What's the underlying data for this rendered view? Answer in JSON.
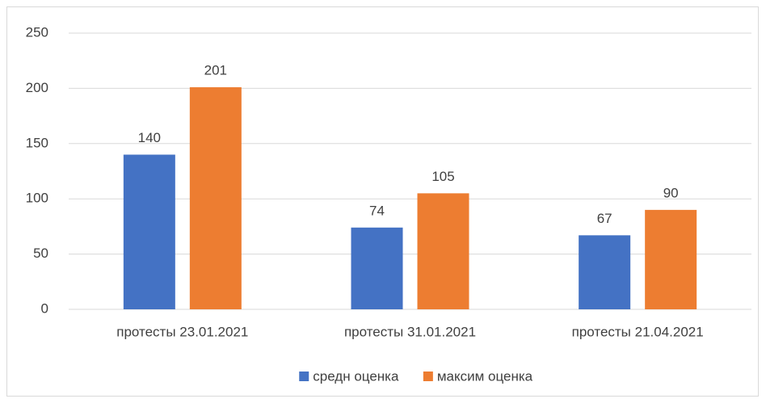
{
  "chart_data": {
    "type": "bar",
    "categories": [
      "протесты 23.01.2021",
      "протесты 31.01.2021",
      "протесты 21.04.2021"
    ],
    "series": [
      {
        "name": "средн оценка",
        "color": "#4472c4",
        "values": [
          140,
          74,
          67
        ]
      },
      {
        "name": "максим оценка",
        "color": "#ed7d31",
        "values": [
          201,
          105,
          90
        ]
      }
    ],
    "ylim": [
      0,
      250
    ],
    "yticks": [
      0,
      50,
      100,
      150,
      200,
      250
    ],
    "grid": true,
    "legend": "bottom"
  }
}
